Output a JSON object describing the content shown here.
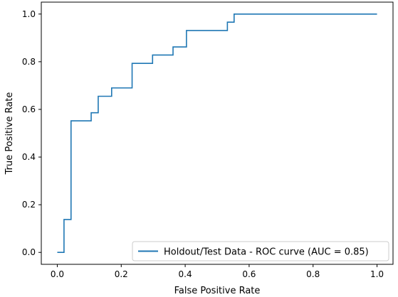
{
  "chart_data": {
    "type": "line",
    "title": "",
    "xlabel": "False Positive Rate",
    "ylabel": "True Positive Rate",
    "xlim": [
      -0.05,
      1.05
    ],
    "ylim": [
      -0.05,
      1.05
    ],
    "x_ticks": [
      0.0,
      0.2,
      0.4,
      0.6,
      0.8,
      1.0
    ],
    "x_tick_labels": [
      "0.0",
      "0.2",
      "0.4",
      "0.6",
      "0.8",
      "1.0"
    ],
    "y_ticks": [
      0.0,
      0.2,
      0.4,
      0.6,
      0.8,
      1.0
    ],
    "y_tick_labels": [
      "0.0",
      "0.2",
      "0.4",
      "0.6",
      "0.8",
      "1.0"
    ],
    "grid": false,
    "legend_position": "lower right",
    "colors": {
      "series": "#1f77b4",
      "axis": "#000000"
    },
    "series": [
      {
        "name": "Holdout/Test Data - ROC curve (AUC = 0.85)",
        "step": true,
        "x": [
          0.0,
          0.021,
          0.021,
          0.043,
          0.043,
          0.106,
          0.106,
          0.128,
          0.128,
          0.17,
          0.17,
          0.234,
          0.234,
          0.298,
          0.298,
          0.362,
          0.362,
          0.404,
          0.404,
          0.532,
          0.532,
          0.553,
          0.553,
          1.0
        ],
        "y": [
          0.0,
          0.0,
          0.138,
          0.138,
          0.552,
          0.552,
          0.586,
          0.586,
          0.655,
          0.655,
          0.69,
          0.69,
          0.793,
          0.793,
          0.828,
          0.828,
          0.862,
          0.862,
          0.931,
          0.931,
          0.966,
          0.966,
          1.0,
          1.0
        ]
      }
    ]
  }
}
